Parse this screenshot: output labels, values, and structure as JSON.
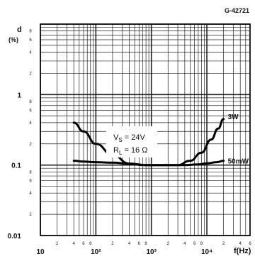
{
  "figure_code": "G-42721",
  "chart_data": {
    "type": "line",
    "xscale": "log",
    "yscale": "log",
    "xlim": [
      10,
      60000
    ],
    "ylim": [
      0.01,
      10
    ],
    "ylabel": "d",
    "ylabel_unit": "(%)",
    "xlabel": "f(Hz)",
    "x_major_ticks": [
      {
        "value": 10,
        "label": "10"
      },
      {
        "value": 100,
        "label": "10²"
      },
      {
        "value": 1000,
        "label": "10³"
      },
      {
        "value": 10000,
        "label": "10⁴"
      }
    ],
    "y_major_ticks": [
      {
        "value": 1,
        "label": "1"
      },
      {
        "value": 0.1,
        "label": "0.1"
      },
      {
        "value": 0.01,
        "label": "0.01"
      }
    ],
    "x_minor_digits": [
      "2",
      "4",
      "6",
      "8"
    ],
    "y_minor_digits": [
      "8",
      "6",
      "4",
      "2"
    ],
    "annotation": {
      "line1": "V",
      "line1_sub": "S",
      "line1_rest": " = 24V",
      "line2": "R",
      "line2_sub": "L",
      "line2_rest": " = 16 Ω"
    },
    "series": [
      {
        "name": "3W",
        "x": [
          40,
          60,
          100,
          200,
          400,
          700,
          1500,
          3000,
          5000,
          8000,
          12000,
          16000,
          20000
        ],
        "y": [
          0.4,
          0.3,
          0.2,
          0.14,
          0.105,
          0.1,
          0.1,
          0.1,
          0.115,
          0.15,
          0.23,
          0.33,
          0.45
        ]
      },
      {
        "name": "50mW",
        "x": [
          40,
          60,
          100,
          200,
          400,
          800,
          2000,
          4000,
          7000,
          10000,
          15000,
          20000
        ],
        "y": [
          0.115,
          0.112,
          0.11,
          0.108,
          0.105,
          0.1,
          0.1,
          0.1,
          0.102,
          0.106,
          0.11,
          0.115
        ]
      }
    ]
  }
}
